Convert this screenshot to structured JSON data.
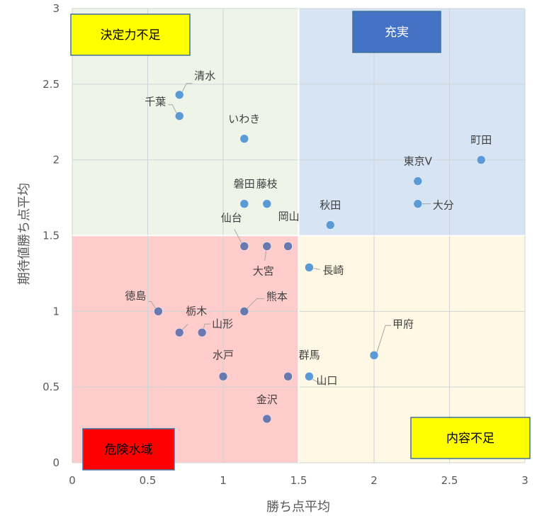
{
  "chart_data": {
    "type": "scatter",
    "xlabel": "勝ち点平均",
    "ylabel": "期待値勝ち点平均",
    "xlim": [
      0,
      3
    ],
    "ylim": [
      0,
      3
    ],
    "x_ticks": [
      "0",
      "0.5",
      "1",
      "1.5",
      "2",
      "2.5",
      "3"
    ],
    "y_ticks": [
      "0",
      "0.5",
      "1",
      "1.5",
      "2",
      "2.5",
      "3"
    ],
    "grid": true,
    "quadrants": [
      {
        "id": "top-left",
        "label": "決定力不足",
        "x_range": [
          0,
          1.5
        ],
        "y_range": [
          1.5,
          3
        ],
        "color": "#eef5e8",
        "label_bg": "#ffff00",
        "label_color": "#000000"
      },
      {
        "id": "top-right",
        "label": "充実",
        "x_range": [
          1.5,
          3
        ],
        "y_range": [
          1.5,
          3
        ],
        "color": "#d6e4f4",
        "label_bg": "#4472c4",
        "label_color": "#ffffff"
      },
      {
        "id": "bottom-left",
        "label": "危険水域",
        "x_range": [
          0,
          1.5
        ],
        "y_range": [
          0,
          1.5
        ],
        "color": "#ffcccc",
        "label_bg": "#ff0000",
        "label_color": "#000000"
      },
      {
        "id": "bottom-right",
        "label": "内容不足",
        "x_range": [
          1.5,
          3
        ],
        "y_range": [
          0,
          1.5
        ],
        "color": "#fef8e4",
        "label_bg": "#ffff00",
        "label_color": "#000000"
      }
    ],
    "points": [
      {
        "name": "清水",
        "x": 0.71,
        "y": 2.43
      },
      {
        "name": "千葉",
        "x": 0.71,
        "y": 2.29
      },
      {
        "name": "いわき",
        "x": 1.14,
        "y": 2.14
      },
      {
        "name": "町田",
        "x": 2.71,
        "y": 2.0
      },
      {
        "name": "東京V",
        "x": 2.29,
        "y": 1.86
      },
      {
        "name": "大分",
        "x": 2.29,
        "y": 1.71
      },
      {
        "name": "磐田",
        "x": 1.14,
        "y": 1.71
      },
      {
        "name": "藤枝",
        "x": 1.29,
        "y": 1.71
      },
      {
        "name": "秋田",
        "x": 1.71,
        "y": 1.57
      },
      {
        "name": "仙台",
        "x": 1.14,
        "y": 1.43
      },
      {
        "name": "大宮",
        "x": 1.29,
        "y": 1.43
      },
      {
        "name": "岡山",
        "x": 1.43,
        "y": 1.43
      },
      {
        "name": "長崎",
        "x": 1.57,
        "y": 1.29
      },
      {
        "name": "徳島",
        "x": 0.57,
        "y": 1.0
      },
      {
        "name": "熊本",
        "x": 1.14,
        "y": 1.0
      },
      {
        "name": "栃木",
        "x": 0.71,
        "y": 0.86
      },
      {
        "name": "山形",
        "x": 0.86,
        "y": 0.86
      },
      {
        "name": "甲府",
        "x": 2.0,
        "y": 0.71
      },
      {
        "name": "水戸",
        "x": 1.0,
        "y": 0.57
      },
      {
        "name": "群馬",
        "x": 1.43,
        "y": 0.57
      },
      {
        "name": "山口",
        "x": 1.57,
        "y": 0.57
      },
      {
        "name": "金沢",
        "x": 1.29,
        "y": 0.29
      }
    ],
    "point_color": "#5b9bd5"
  }
}
